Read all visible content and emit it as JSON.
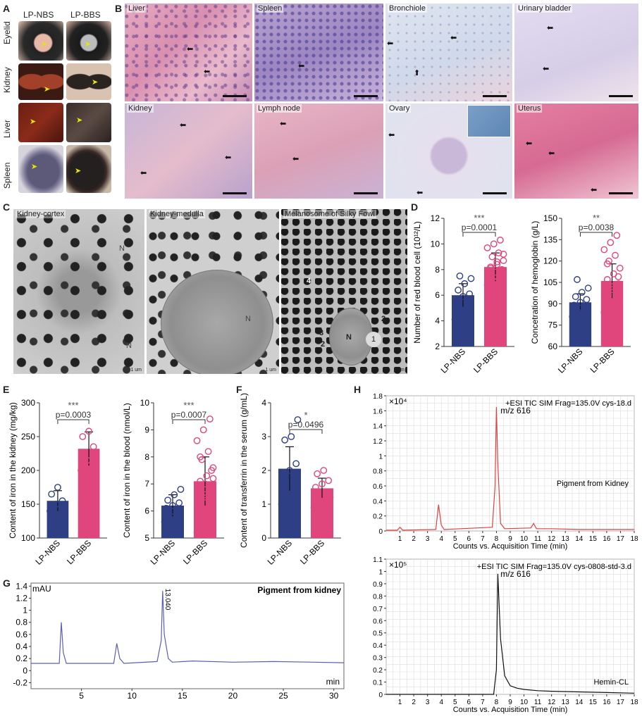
{
  "panels": {
    "A": "A",
    "B": "B",
    "C": "C",
    "D": "D",
    "E": "E",
    "F": "F",
    "G": "G",
    "H": "H"
  },
  "panelA": {
    "col_labels": [
      "LP-NBS",
      "LP-BBS"
    ],
    "row_labels": [
      "Eyelid",
      "Kidney",
      "Liver",
      "Spleen"
    ]
  },
  "panelB": {
    "tiles": [
      "Liver",
      "Spleen",
      "Bronchiole",
      "Urinary bladder",
      "Kidney",
      "Lymph node",
      "Ovary",
      "Uterus"
    ]
  },
  "panelC": {
    "tiles": [
      "Kidney-cortex",
      "Kidney-medulla",
      "Melanosome of Silky Fowl"
    ],
    "nucleus_label": "N",
    "melanosome_numbers": [
      "1",
      "2",
      "3",
      "4"
    ],
    "scale_label": "1 um"
  },
  "chart_data": [
    {
      "id": "D-left",
      "type": "bar",
      "categories": [
        "LP-NBS",
        "LP-BBS"
      ],
      "values": [
        6.0,
        8.2
      ],
      "errors": [
        0.9,
        1.1
      ],
      "ylabel": "Number of red blood cell (10¹²/L)",
      "ylim": [
        2,
        12
      ],
      "yticks": [
        2,
        4,
        6,
        8,
        10,
        12
      ],
      "p_text": "p=0.0001",
      "stars": "***",
      "colors": [
        "#2e3f86",
        "#e0457b"
      ],
      "points": [
        [
          4.1,
          4.4,
          5.0,
          5.6,
          5.9,
          6.1,
          6.4,
          6.9,
          7.3,
          7.5
        ],
        [
          6.8,
          7.1,
          7.3,
          7.6,
          7.8,
          8.0,
          8.2,
          8.4,
          8.7,
          9.0,
          9.3,
          9.7,
          10.0,
          10.3,
          6.5,
          7.0,
          7.4,
          8.1,
          8.6,
          9.2
        ]
      ]
    },
    {
      "id": "D-right",
      "type": "bar",
      "categories": [
        "LP-NBS",
        "LP-BBS"
      ],
      "values": [
        91,
        106
      ],
      "errors": [
        6,
        12
      ],
      "ylabel": "Concetration of hemoglobin (g/L)",
      "ylim": [
        60,
        150
      ],
      "yticks": [
        60,
        75,
        90,
        105,
        120,
        135,
        150
      ],
      "p_text": "p=0.0038",
      "stars": "**",
      "colors": [
        "#2e3f86",
        "#e0457b"
      ],
      "points": [
        [
          81,
          84,
          87,
          89,
          91,
          93,
          95,
          98,
          101,
          107
        ],
        [
          84,
          88,
          93,
          97,
          100,
          104,
          107,
          111,
          115,
          120,
          124,
          128,
          133,
          138,
          95,
          102,
          109,
          118
        ]
      ]
    },
    {
      "id": "E-left",
      "type": "bar",
      "categories": [
        "LP-NBS",
        "LP-BBS"
      ],
      "values": [
        155,
        232
      ],
      "errors": [
        15,
        25
      ],
      "ylabel": "Content of iron in the kidney (mg/kg)",
      "ylim": [
        100,
        300
      ],
      "yticks": [
        100,
        150,
        200,
        250,
        300
      ],
      "p_text": "p=0.0003",
      "stars": "***",
      "colors": [
        "#2e3f86",
        "#e0457b"
      ],
      "points": [
        [
          140,
          150,
          155,
          165,
          175
        ],
        [
          200,
          215,
          235,
          250,
          258
        ]
      ]
    },
    {
      "id": "E-right",
      "type": "bar",
      "categories": [
        "LP-NBS",
        "LP-BBS"
      ],
      "values": [
        6.2,
        7.1
      ],
      "errors": [
        0.4,
        0.9
      ],
      "ylabel": "Content of iron in the blood (nmol/L)",
      "ylim": [
        5,
        10
      ],
      "yticks": [
        5,
        6,
        7,
        8,
        9,
        10
      ],
      "p_text": "p=0.0007",
      "stars": "***",
      "colors": [
        "#2e3f86",
        "#e0457b"
      ],
      "points": [
        [
          5.6,
          5.8,
          6.0,
          6.1,
          6.2,
          6.3,
          6.4,
          6.6,
          6.8
        ],
        [
          5.2,
          5.6,
          6.0,
          6.3,
          6.6,
          6.9,
          7.1,
          7.3,
          7.6,
          7.9,
          8.2,
          8.6,
          9.0,
          9.4,
          6.8,
          7.0,
          7.5,
          8.0,
          6.5,
          7.2
        ]
      ]
    },
    {
      "id": "F",
      "type": "bar",
      "categories": [
        "LP-NBS",
        "LP-BBS"
      ],
      "values": [
        2.05,
        1.47
      ],
      "errors": [
        0.65,
        0.3
      ],
      "ylabel": "Content of transferrin in the serum (g/mL)",
      "ylim": [
        0,
        4
      ],
      "yticks": [
        0,
        1,
        2,
        3,
        4
      ],
      "p_text": "p=0.0496",
      "stars": "*",
      "colors": [
        "#2e3f86",
        "#e0457b"
      ],
      "points": [
        [
          1.0,
          1.2,
          1.5,
          1.8,
          2.0,
          2.2,
          2.9,
          3.0,
          3.5,
          1.1
        ],
        [
          0.9,
          1.1,
          1.3,
          1.5,
          1.6,
          1.7,
          1.9,
          2.0,
          1.2
        ]
      ]
    },
    {
      "id": "G",
      "type": "line",
      "title": "Pigment from kidney",
      "yunit": "mAU",
      "xunit": "min",
      "xlim": [
        0,
        31
      ],
      "ylim": [
        -0.3,
        1.45
      ],
      "xticks": [
        5,
        10,
        15,
        20,
        25,
        30
      ],
      "yticks": [
        -0.2,
        0,
        0.2,
        0.4,
        0.6,
        0.8,
        1.0,
        1.2,
        1.4
      ],
      "peak_label": "13.040",
      "x": [
        0,
        2.8,
        3.0,
        3.2,
        3.5,
        8.2,
        8.5,
        8.8,
        9.2,
        12.5,
        12.9,
        13.04,
        13.2,
        13.6,
        14,
        16,
        20,
        24,
        28,
        31
      ],
      "y": [
        0.12,
        0.12,
        0.8,
        0.3,
        0.12,
        0.12,
        0.45,
        0.2,
        0.12,
        0.15,
        0.5,
        1.32,
        0.6,
        0.2,
        0.14,
        0.16,
        0.14,
        0.15,
        0.14,
        0.13
      ],
      "color": "#5a5fb5"
    },
    {
      "id": "H-top",
      "type": "line",
      "title": "+ESI TIC  SIM Frag=135.0V  cys-18.d",
      "multiplier": "×10⁴",
      "annotation": "m/z 616",
      "trace_label": "Pigment from Kidney",
      "xlabel": "Counts vs. Acquisition Time (min)",
      "xlim": [
        0,
        18
      ],
      "ylim": [
        0,
        1.8
      ],
      "xticks": [
        1,
        2,
        3,
        4,
        5,
        6,
        7,
        8,
        9,
        10,
        11,
        12,
        13,
        14,
        15,
        16,
        17,
        18
      ],
      "yticks": [
        0,
        0.2,
        0.4,
        0.6,
        0.8,
        1.0,
        1.2,
        1.4,
        1.6,
        1.8
      ],
      "x": [
        0,
        0.8,
        1.0,
        1.2,
        3.6,
        3.8,
        4.0,
        4.2,
        7.7,
        7.9,
        8.0,
        8.1,
        8.3,
        8.6,
        10.5,
        10.7,
        10.9,
        12,
        14,
        16,
        18
      ],
      "y": [
        0.01,
        0.01,
        0.05,
        0.01,
        0.02,
        0.35,
        0.08,
        0.02,
        0.05,
        0.6,
        1.65,
        0.9,
        0.1,
        0.03,
        0.04,
        0.1,
        0.03,
        0.03,
        0.02,
        0.02,
        0.02
      ],
      "color": "#e04040"
    },
    {
      "id": "H-bottom",
      "type": "line",
      "title": "+ESI TIC  SIM Frag=135.0V  cys-0808-std-3.d",
      "multiplier": "×10⁵",
      "annotation": "m/z 616",
      "trace_label": "Hemin-CL",
      "xlabel": "Counts vs. Acquisition Time (min)",
      "xlim": [
        0,
        18
      ],
      "ylim": [
        0,
        1.1
      ],
      "xticks": [
        1,
        2,
        3,
        4,
        5,
        6,
        7,
        8,
        9,
        10,
        11,
        12,
        13,
        14,
        15,
        16,
        17,
        18
      ],
      "yticks": [
        0,
        0.1,
        0.2,
        0.3,
        0.4,
        0.5,
        0.6,
        0.7,
        0.8,
        0.9,
        1.0,
        1.1
      ],
      "x": [
        0,
        7.8,
        8.0,
        8.1,
        8.3,
        8.6,
        9.0,
        9.5,
        10,
        11,
        12,
        14,
        16,
        18
      ],
      "y": [
        0.0,
        0.0,
        0.2,
        0.98,
        0.45,
        0.15,
        0.07,
        0.05,
        0.04,
        0.03,
        0.025,
        0.02,
        0.015,
        0.01
      ],
      "color": "#111111"
    }
  ]
}
